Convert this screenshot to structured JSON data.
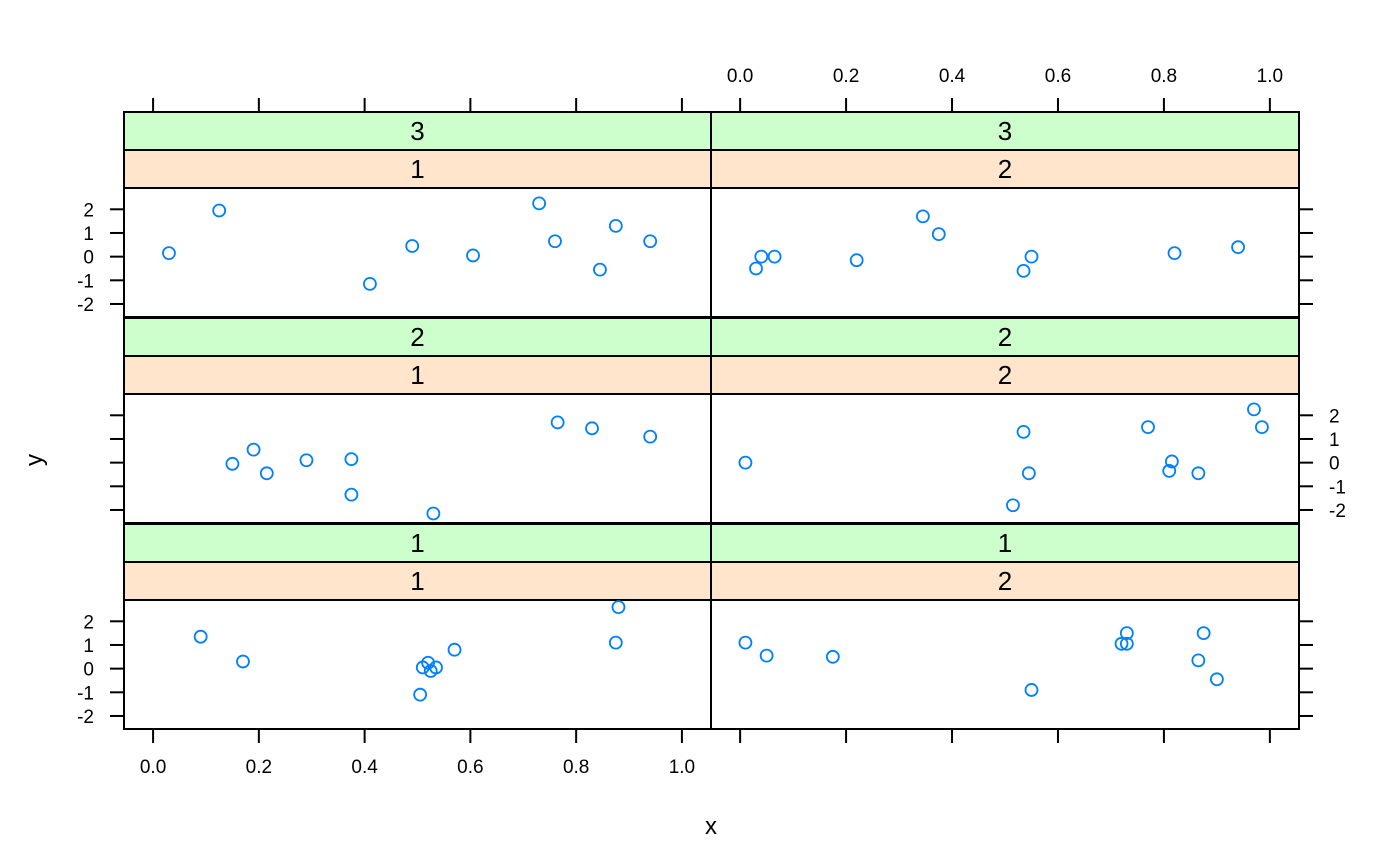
{
  "chart_data": {
    "type": "scatter",
    "xlabel": "x",
    "ylabel": "y",
    "xlim": [
      -0.055,
      1.055
    ],
    "ylim": [
      -2.55,
      2.9
    ],
    "x_ticks": [
      0.0,
      0.2,
      0.4,
      0.6,
      0.8,
      1.0
    ],
    "x_tick_labels": [
      "0.0",
      "0.2",
      "0.4",
      "0.6",
      "0.8",
      "1.0"
    ],
    "y_ticks": [
      -2,
      -1,
      0,
      1,
      2
    ],
    "y_tick_labels": [
      "-2",
      "-1",
      "0",
      "1",
      "2"
    ],
    "point_color": "#0080ff",
    "strip_colors": {
      "outer": "#ccffcc",
      "inner": "#ffe5cc"
    },
    "layout": {
      "columns": 2,
      "rows": 3
    },
    "panels": [
      {
        "row": 1,
        "col": 1,
        "strip_outer": "3",
        "strip_inner": "1",
        "points": [
          {
            "x": 0.03,
            "y": 0.15
          },
          {
            "x": 0.125,
            "y": 1.95
          },
          {
            "x": 0.41,
            "y": -1.15
          },
          {
            "x": 0.49,
            "y": 0.45
          },
          {
            "x": 0.605,
            "y": 0.05
          },
          {
            "x": 0.73,
            "y": 2.25
          },
          {
            "x": 0.76,
            "y": 0.65
          },
          {
            "x": 0.845,
            "y": -0.55
          },
          {
            "x": 0.875,
            "y": 1.3
          },
          {
            "x": 0.94,
            "y": 0.65
          }
        ]
      },
      {
        "row": 1,
        "col": 2,
        "strip_outer": "3",
        "strip_inner": "2",
        "points": [
          {
            "x": 0.03,
            "y": -0.5
          },
          {
            "x": 0.04,
            "y": 0.0
          },
          {
            "x": 0.065,
            "y": 0.0
          },
          {
            "x": 0.22,
            "y": -0.15
          },
          {
            "x": 0.345,
            "y": 1.7
          },
          {
            "x": 0.375,
            "y": 0.95
          },
          {
            "x": 0.535,
            "y": -0.6
          },
          {
            "x": 0.55,
            "y": 0.0
          },
          {
            "x": 0.82,
            "y": 0.15
          },
          {
            "x": 0.94,
            "y": 0.4
          }
        ]
      },
      {
        "row": 2,
        "col": 1,
        "strip_outer": "2",
        "strip_inner": "1",
        "points": [
          {
            "x": 0.15,
            "y": -0.05
          },
          {
            "x": 0.19,
            "y": 0.55
          },
          {
            "x": 0.215,
            "y": -0.45
          },
          {
            "x": 0.29,
            "y": 0.1
          },
          {
            "x": 0.375,
            "y": -1.35
          },
          {
            "x": 0.375,
            "y": 0.15
          },
          {
            "x": 0.53,
            "y": -2.15
          },
          {
            "x": 0.765,
            "y": 1.7
          },
          {
            "x": 0.83,
            "y": 1.45
          },
          {
            "x": 0.94,
            "y": 1.1
          }
        ]
      },
      {
        "row": 2,
        "col": 2,
        "strip_outer": "2",
        "strip_inner": "2",
        "points": [
          {
            "x": 0.01,
            "y": 0.0
          },
          {
            "x": 0.515,
            "y": -1.8
          },
          {
            "x": 0.535,
            "y": 1.3
          },
          {
            "x": 0.545,
            "y": -0.45
          },
          {
            "x": 0.77,
            "y": 1.5
          },
          {
            "x": 0.81,
            "y": -0.35
          },
          {
            "x": 0.815,
            "y": 0.05
          },
          {
            "x": 0.865,
            "y": -0.45
          },
          {
            "x": 0.97,
            "y": 2.25
          },
          {
            "x": 0.985,
            "y": 1.5
          }
        ]
      },
      {
        "row": 3,
        "col": 1,
        "strip_outer": "1",
        "strip_inner": "1",
        "points": [
          {
            "x": 0.09,
            "y": 1.35
          },
          {
            "x": 0.17,
            "y": 0.3
          },
          {
            "x": 0.505,
            "y": -1.1
          },
          {
            "x": 0.51,
            "y": 0.05
          },
          {
            "x": 0.52,
            "y": 0.25
          },
          {
            "x": 0.525,
            "y": -0.1
          },
          {
            "x": 0.535,
            "y": 0.05
          },
          {
            "x": 0.57,
            "y": 0.8
          },
          {
            "x": 0.875,
            "y": 1.1
          },
          {
            "x": 0.88,
            "y": 2.6
          }
        ]
      },
      {
        "row": 3,
        "col": 2,
        "strip_outer": "1",
        "strip_inner": "2",
        "points": [
          {
            "x": 0.01,
            "y": 1.1
          },
          {
            "x": 0.05,
            "y": 0.55
          },
          {
            "x": 0.175,
            "y": 0.5
          },
          {
            "x": 0.55,
            "y": -0.9
          },
          {
            "x": 0.72,
            "y": 1.05
          },
          {
            "x": 0.73,
            "y": 1.05
          },
          {
            "x": 0.73,
            "y": 1.5
          },
          {
            "x": 0.865,
            "y": 0.35
          },
          {
            "x": 0.875,
            "y": 1.5
          },
          {
            "x": 0.9,
            "y": -0.45
          }
        ]
      }
    ]
  }
}
